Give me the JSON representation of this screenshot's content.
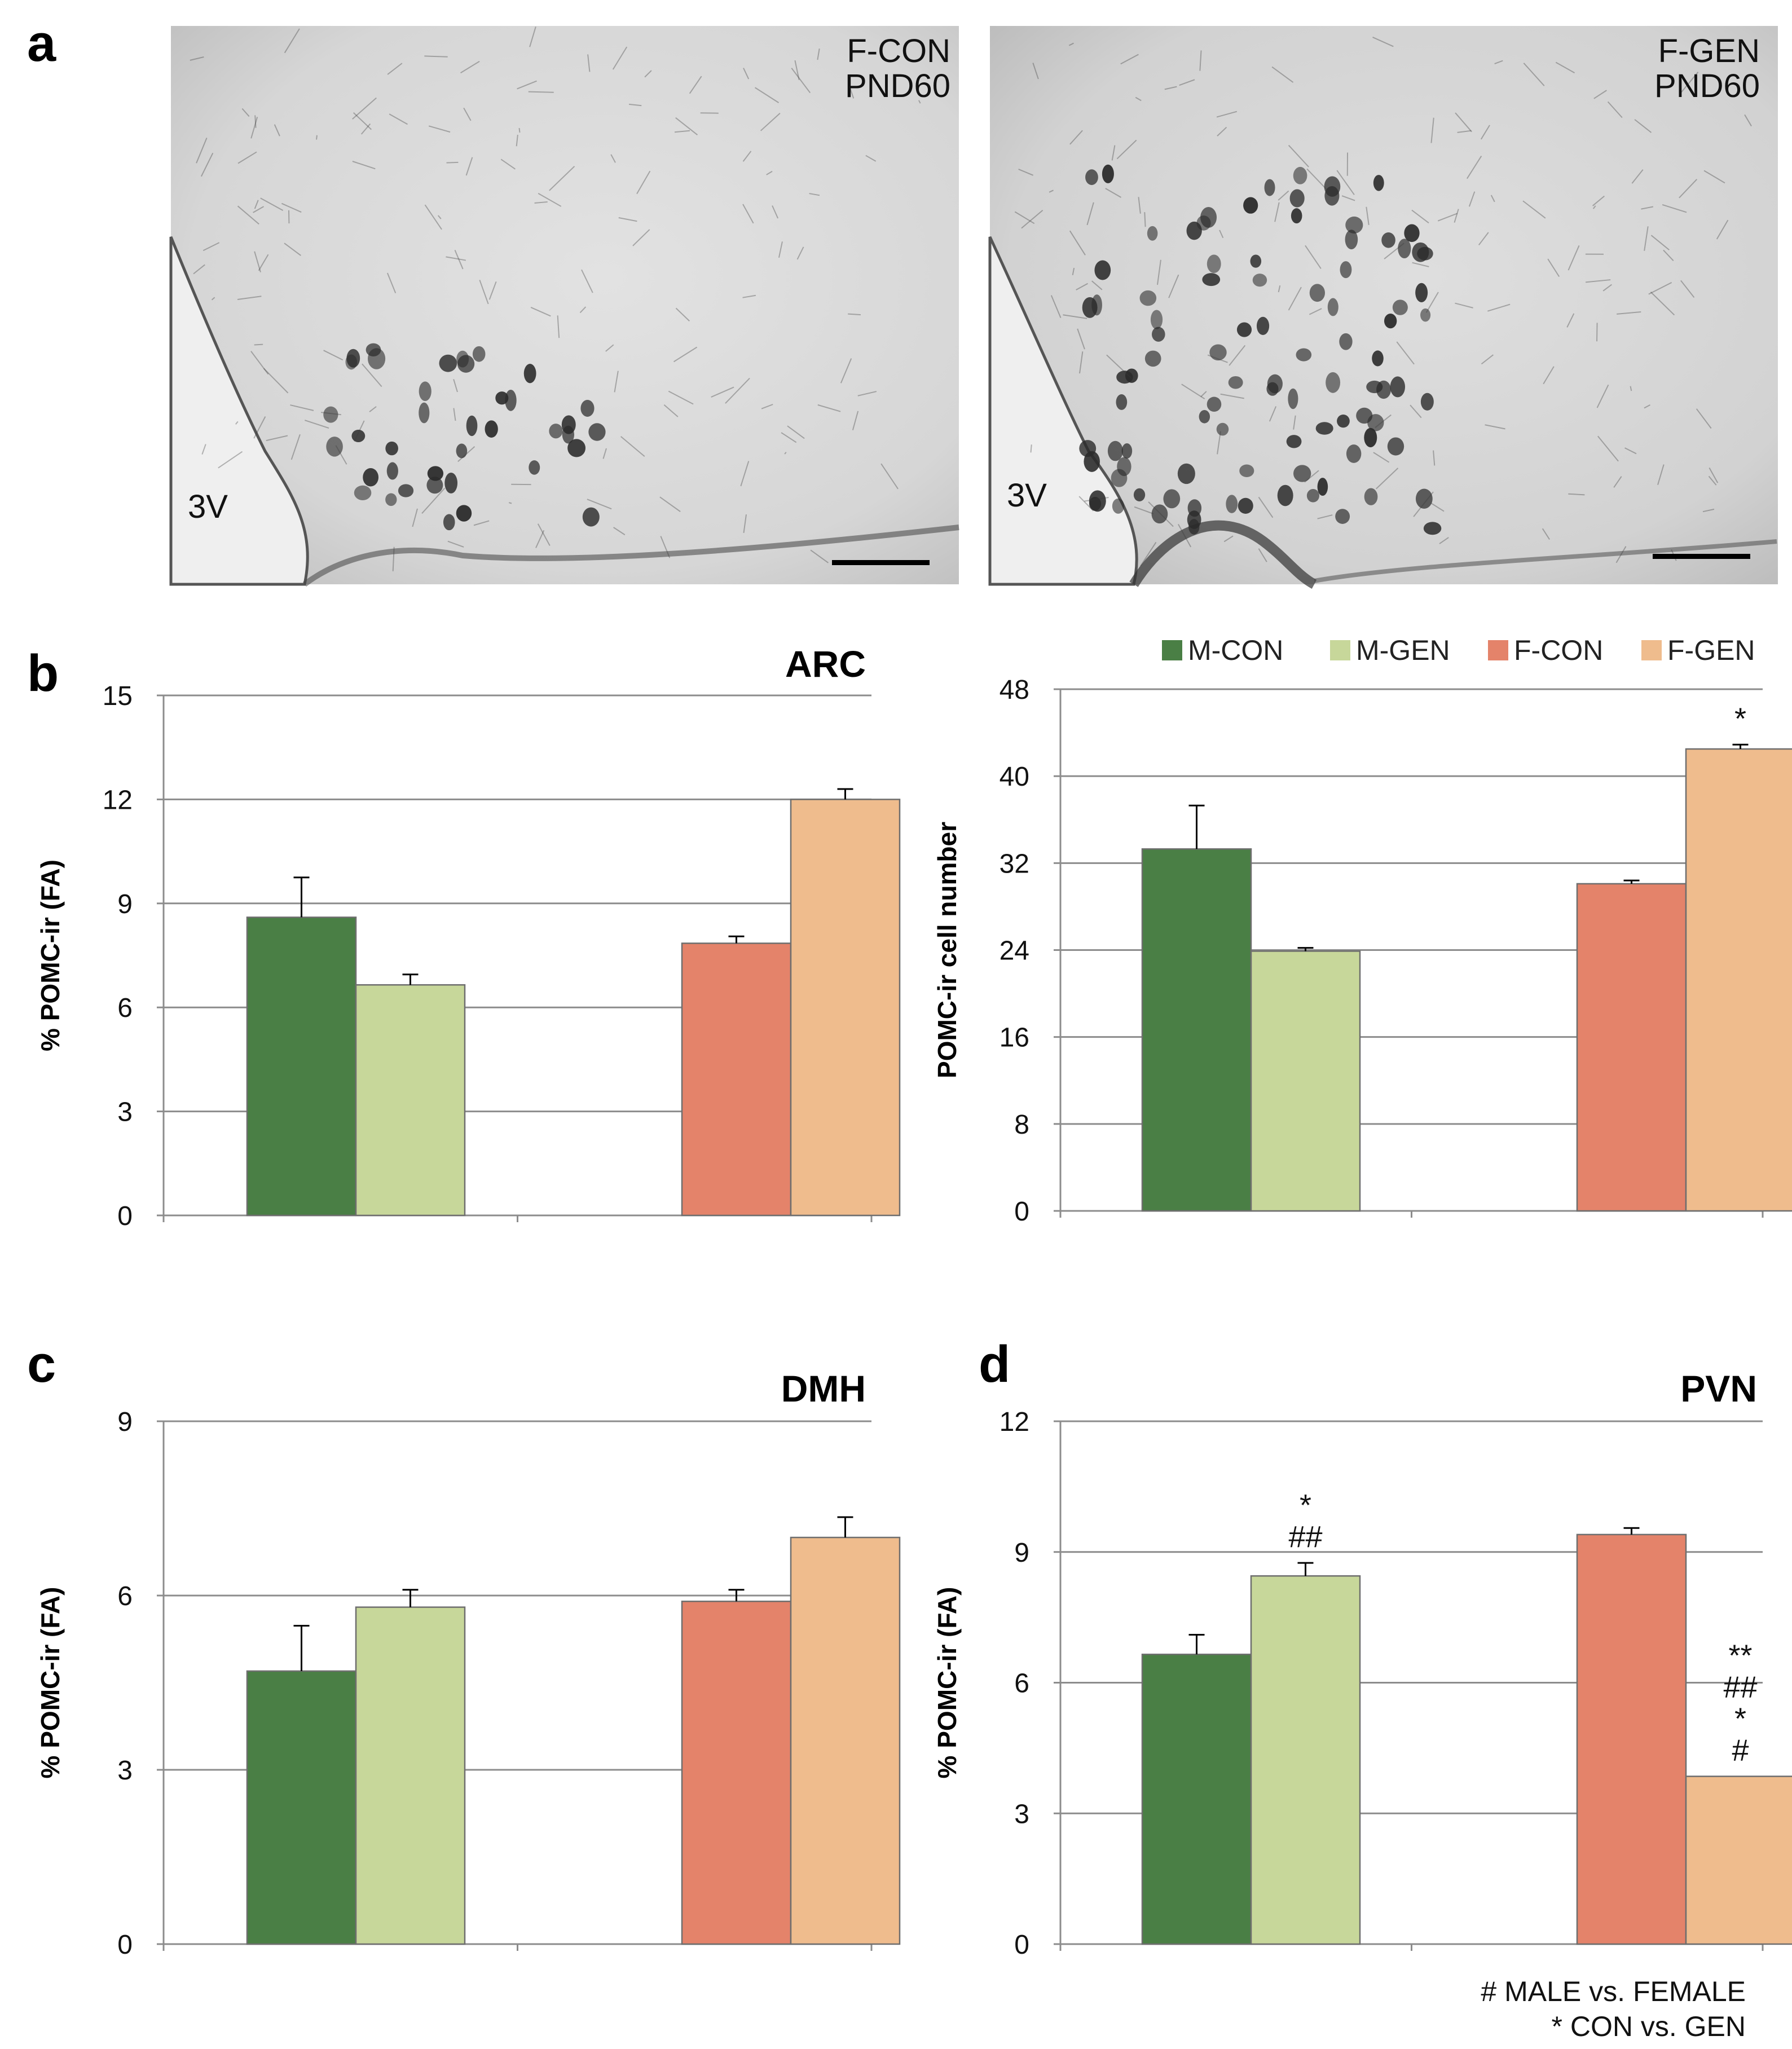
{
  "panels": {
    "a": "a",
    "b": "b",
    "c": "c",
    "d": "d"
  },
  "micrographs": [
    {
      "label_line1": "F-CON",
      "label_line2": "PND60",
      "ventricle": "3V"
    },
    {
      "label_line1": "F-GEN",
      "label_line2": "PND60",
      "ventricle": "3V"
    }
  ],
  "legend": [
    {
      "name": "M-CON",
      "color": "#4a7f45"
    },
    {
      "name": "M-GEN",
      "color": "#c7d79a"
    },
    {
      "name": "F-CON",
      "color": "#e4836a"
    },
    {
      "name": "F-GEN",
      "color": "#efbc8d"
    }
  ],
  "footnote": {
    "line1": "# MALE vs. FEMALE",
    "line2": "* CON vs. GEN"
  },
  "chart_data": [
    {
      "id": "b-left",
      "type": "bar",
      "title": "ARC",
      "ylabel": "% POMC-ir (FA)",
      "ylim": [
        0,
        15
      ],
      "yticks": [
        0,
        3,
        6,
        9,
        12,
        15
      ],
      "series": [
        {
          "name": "M-CON",
          "value": 8.6,
          "error": 1.15
        },
        {
          "name": "M-GEN",
          "value": 6.65,
          "error": 0.3
        },
        {
          "name": "F-CON",
          "value": 7.85,
          "error": 0.2
        },
        {
          "name": "F-GEN",
          "value": 12.0,
          "error": 0.3
        }
      ],
      "annotations": []
    },
    {
      "id": "b-right",
      "type": "bar",
      "title": "",
      "ylabel": "POMC-ir cell number",
      "ylim": [
        0,
        48
      ],
      "yticks": [
        0,
        8,
        16,
        24,
        32,
        40,
        48
      ],
      "series": [
        {
          "name": "M-CON",
          "value": 33.3,
          "error": 4.0
        },
        {
          "name": "M-GEN",
          "value": 23.9,
          "error": 0.3
        },
        {
          "name": "F-CON",
          "value": 30.1,
          "error": 0.3
        },
        {
          "name": "F-GEN",
          "value": 42.5,
          "error": 0.4
        }
      ],
      "annotations": [
        {
          "bar": 3,
          "lines": [
            "*"
          ]
        }
      ]
    },
    {
      "id": "c",
      "type": "bar",
      "title": "DMH",
      "ylabel": "% POMC-ir (FA)",
      "ylim": [
        0,
        9
      ],
      "yticks": [
        0,
        3,
        6,
        9
      ],
      "series": [
        {
          "name": "M-CON",
          "value": 4.7,
          "error": 0.78
        },
        {
          "name": "M-GEN",
          "value": 5.8,
          "error": 0.3
        },
        {
          "name": "F-CON",
          "value": 5.9,
          "error": 0.2
        },
        {
          "name": "F-GEN",
          "value": 7.0,
          "error": 0.35
        }
      ],
      "annotations": []
    },
    {
      "id": "d",
      "type": "bar",
      "title": "PVN",
      "ylabel": "% POMC-ir (FA)",
      "ylim": [
        0,
        12
      ],
      "yticks": [
        0,
        3,
        6,
        9,
        12
      ],
      "series": [
        {
          "name": "M-CON",
          "value": 6.65,
          "error": 0.45
        },
        {
          "name": "M-GEN",
          "value": 8.45,
          "error": 0.3
        },
        {
          "name": "F-CON",
          "value": 9.4,
          "error": 0.15
        },
        {
          "name": "F-GEN",
          "value": 3.85,
          "error": 0.0
        }
      ],
      "annotations": [
        {
          "bar": 1,
          "lines": [
            "*",
            "##"
          ]
        },
        {
          "bar": 3,
          "lines": [
            "**",
            "##",
            "*",
            "#"
          ]
        }
      ]
    }
  ]
}
